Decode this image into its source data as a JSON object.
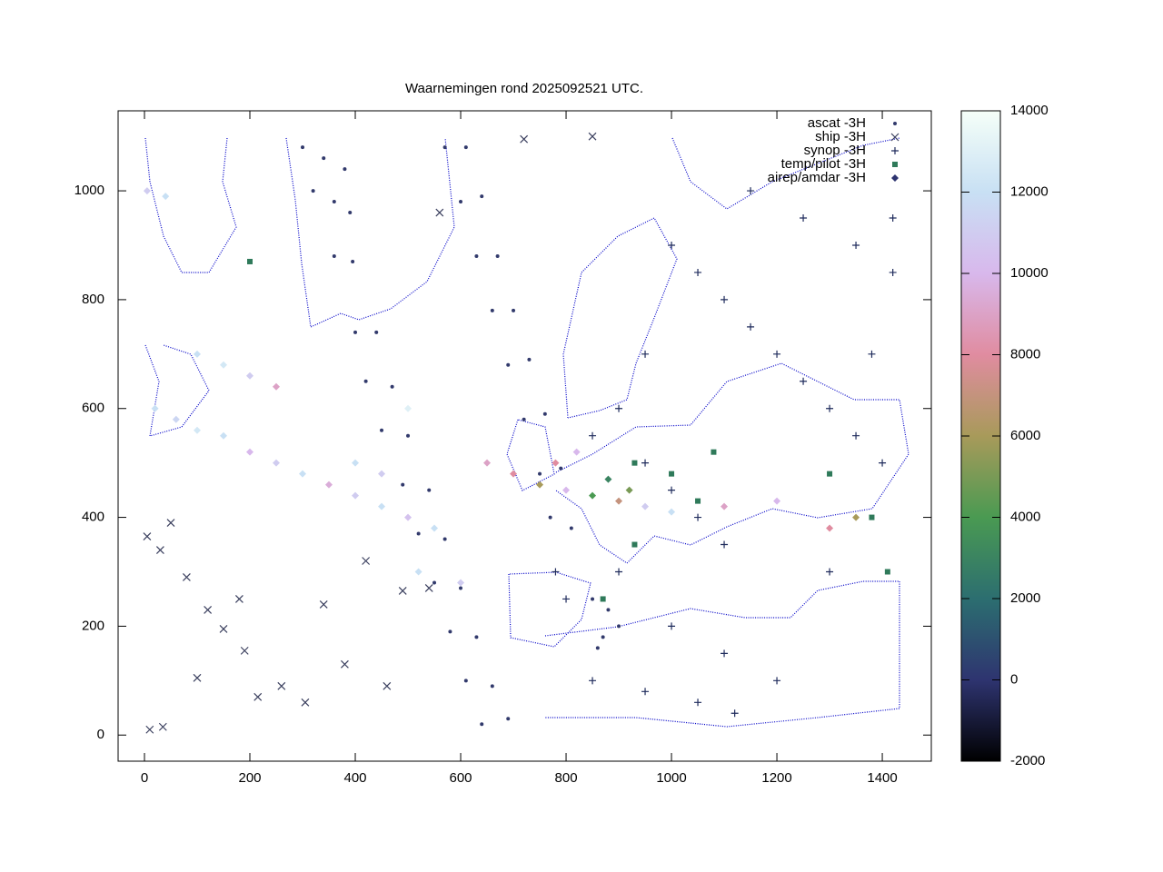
{
  "chart_data": {
    "type": "scatter",
    "title": "Waarnemingen rond 2025092521 UTC.",
    "xlim": [
      -50,
      1493
    ],
    "ylim": [
      -48,
      1147
    ],
    "xticks": [
      0,
      200,
      400,
      600,
      800,
      1000,
      1200,
      1400
    ],
    "yticks": [
      0,
      200,
      400,
      600,
      800,
      1000
    ],
    "colorbar": {
      "range": [
        -2000,
        14000
      ],
      "ticks": [
        -2000,
        0,
        2000,
        4000,
        6000,
        8000,
        10000,
        12000,
        14000
      ],
      "colors": [
        "#000000",
        "#2e3470",
        "#2c6e70",
        "#4a9a52",
        "#a89a5a",
        "#e08ca0",
        "#d8b8ec",
        "#c8e0f4",
        "#f5fff8"
      ]
    },
    "series": [
      {
        "name": "ascat -3H",
        "marker": "dot",
        "color": "#323a6c",
        "x": [
          300,
          340,
          380,
          320,
          360,
          390,
          360,
          395,
          400,
          440,
          420,
          470,
          450,
          500,
          490,
          540,
          520,
          570,
          550,
          600,
          580,
          630,
          610,
          660,
          640,
          690,
          570,
          610,
          600,
          640,
          630,
          670,
          660,
          700,
          690,
          730,
          720,
          760,
          750,
          790,
          770,
          810,
          850,
          880,
          870,
          900,
          860
        ],
        "y": [
          1080,
          1060,
          1040,
          1000,
          980,
          960,
          880,
          870,
          740,
          740,
          650,
          640,
          560,
          550,
          460,
          450,
          370,
          360,
          280,
          270,
          190,
          180,
          100,
          90,
          20,
          30,
          1080,
          1080,
          980,
          990,
          880,
          880,
          780,
          780,
          680,
          690,
          580,
          590,
          480,
          490,
          400,
          380,
          250,
          230,
          180,
          200,
          160
        ]
      },
      {
        "name": "ship -3H",
        "marker": "x",
        "color": "#3a3f5e",
        "x": [
          5,
          30,
          50,
          80,
          10,
          35,
          120,
          150,
          190,
          215,
          260,
          305,
          340,
          380,
          420,
          460,
          490,
          540,
          180,
          100,
          720,
          850,
          560
        ],
        "y": [
          365,
          340,
          390,
          290,
          10,
          15,
          230,
          195,
          155,
          70,
          90,
          60,
          240,
          130,
          320,
          90,
          265,
          270,
          250,
          105,
          1095,
          1100,
          960
        ]
      },
      {
        "name": "synop -3H",
        "marker": "plus",
        "color": "#1f2b5c",
        "x": [
          1000,
          1050,
          1100,
          1150,
          1200,
          1250,
          1300,
          1350,
          1400,
          950,
          900,
          850,
          950,
          1000,
          1050,
          1100,
          800,
          780,
          1000,
          1100,
          1200,
          1300,
          1350,
          1420,
          1420,
          1380,
          900,
          850,
          950,
          1050,
          1120,
          1250,
          1150
        ],
        "y": [
          900,
          850,
          800,
          750,
          700,
          650,
          600,
          550,
          500,
          700,
          600,
          550,
          500,
          450,
          400,
          350,
          250,
          300,
          200,
          150,
          100,
          300,
          900,
          950,
          850,
          700,
          300,
          100,
          80,
          60,
          40,
          950,
          1000
        ]
      },
      {
        "name": "temp/pilot -3H",
        "marker": "square",
        "color": "#2f7a5a",
        "x": [
          200,
          930,
          1000,
          1300,
          1410,
          1380,
          930,
          1050,
          870,
          1080
        ],
        "y": [
          870,
          500,
          480,
          480,
          300,
          400,
          350,
          430,
          250,
          520
        ]
      },
      {
        "name": "airep/amdar -3H",
        "marker": "diamond",
        "color": "#2e3470",
        "x": [
          5,
          40,
          20,
          60,
          100,
          150,
          200,
          250,
          300,
          350,
          400,
          450,
          500,
          550,
          100,
          150,
          200,
          250,
          400,
          450,
          500,
          520,
          600,
          650,
          700,
          750,
          800,
          850,
          900,
          950,
          1000,
          1100,
          1200,
          1300,
          1350,
          880,
          920,
          780,
          820
        ],
        "y": [
          1000,
          990,
          600,
          580,
          560,
          550,
          520,
          500,
          480,
          460,
          440,
          420,
          400,
          380,
          700,
          680,
          660,
          640,
          500,
          480,
          600,
          300,
          280,
          500,
          480,
          460,
          450,
          440,
          430,
          420,
          410,
          420,
          430,
          380,
          400,
          470,
          450,
          500,
          520
        ],
        "z": [
          11000,
          12000,
          12000,
          11500,
          12500,
          12000,
          10000,
          11000,
          12000,
          9500,
          11000,
          12000,
          10500,
          12000,
          12000,
          12500,
          11000,
          9000,
          12000,
          11000,
          13000,
          12000,
          11000,
          9000,
          8000,
          6000,
          10000,
          4000,
          7000,
          11000,
          12000,
          9000,
          10000,
          8000,
          6000,
          3000,
          5000,
          8000,
          10000
        ]
      }
    ]
  }
}
